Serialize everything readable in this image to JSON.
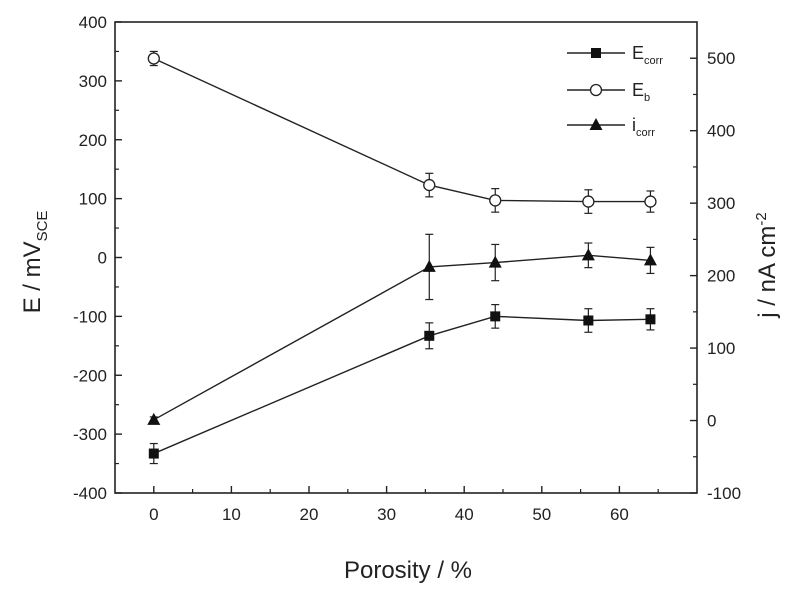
{
  "chart_data": {
    "type": "line",
    "xlabel": "Porosity / %",
    "ylabel_left": {
      "main": "E / mV",
      "sub": "SCE"
    },
    "ylabel_right": {
      "main": "j / nA cm",
      "sup": "-2"
    },
    "xlim": [
      -5,
      70
    ],
    "ylim_left": [
      -400,
      400
    ],
    "ylim_right": [
      -100,
      550
    ],
    "x_ticks": [
      "0",
      "10",
      "20",
      "30",
      "40",
      "50",
      "60"
    ],
    "y_left_ticks": [
      "-400",
      "-300",
      "-200",
      "-100",
      "0",
      "100",
      "200",
      "300",
      "400"
    ],
    "y_right_ticks": [
      "-100",
      "0",
      "100",
      "200",
      "300",
      "400",
      "500"
    ],
    "grid": false,
    "legend_position": "top-right",
    "series": [
      {
        "name": "E",
        "sub": "corr",
        "marker": "square-filled",
        "axis": "left",
        "x": [
          0,
          35.5,
          44,
          56,
          64
        ],
        "y": [
          -333,
          -133,
          -100,
          -107,
          -105
        ],
        "err": [
          17,
          22,
          20,
          20,
          18
        ]
      },
      {
        "name": "E",
        "sub": "b",
        "marker": "circle-open",
        "axis": "left",
        "x": [
          0,
          35.5,
          44,
          56,
          64
        ],
        "y": [
          338,
          123,
          97,
          95,
          95
        ],
        "err": [
          12,
          20,
          20,
          20,
          18
        ]
      },
      {
        "name": "i",
        "sub": "corr",
        "marker": "triangle-filled",
        "axis": "right",
        "x": [
          0,
          35.5,
          44,
          56,
          64
        ],
        "y": [
          1,
          212,
          218,
          228,
          221
        ],
        "err": [
          4,
          45,
          25,
          17,
          18
        ]
      }
    ]
  }
}
